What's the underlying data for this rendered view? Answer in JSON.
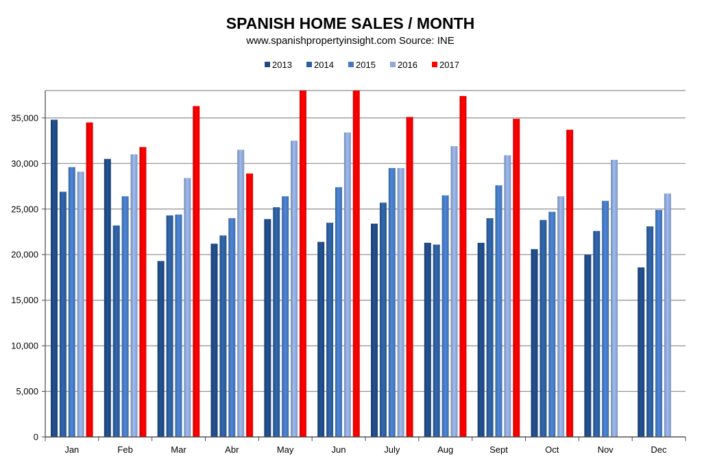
{
  "chart_data": {
    "type": "bar",
    "title": "SPANISH HOME SALES / MONTH",
    "subtitle": "www.spanishpropertyinsight.com Source: INE",
    "xlabel": "",
    "ylabel": "",
    "ylim": [
      0,
      38000
    ],
    "yticks": [
      0,
      5000,
      10000,
      15000,
      20000,
      25000,
      30000,
      35000
    ],
    "ytick_labels": [
      "0",
      "5,000",
      "10,000",
      "15,000",
      "20,000",
      "25,000",
      "30,000",
      "35,000"
    ],
    "grid": true,
    "legend_position": "top-center",
    "categories": [
      "Jan",
      "Feb",
      "Mar",
      "Abr",
      "May",
      "Jun",
      "July",
      "Aug",
      "Sept",
      "Oct",
      "Nov",
      "Dec"
    ],
    "series": [
      {
        "name": "2013",
        "color": "#1f4a85",
        "values": [
          34800,
          30500,
          19300,
          21200,
          23900,
          21400,
          23400,
          21300,
          21300,
          20600,
          20000,
          18600
        ]
      },
      {
        "name": "2014",
        "color": "#2d5e9e",
        "values": [
          26900,
          23200,
          24300,
          22100,
          25200,
          23500,
          25700,
          21100,
          24000,
          23800,
          22600,
          23100
        ]
      },
      {
        "name": "2015",
        "color": "#4679c2",
        "values": [
          29600,
          26400,
          24400,
          24000,
          26400,
          27400,
          29500,
          26500,
          27600,
          24700,
          25900,
          24900
        ]
      },
      {
        "name": "2016",
        "color": "#8ea8d8",
        "values": [
          29100,
          31000,
          28400,
          31500,
          32500,
          33400,
          29500,
          31900,
          30900,
          26400,
          30400,
          26700
        ]
      },
      {
        "name": "2017",
        "color": "#ff0000",
        "values": [
          34500,
          31800,
          36300,
          28900,
          38000,
          38000,
          35100,
          37400,
          34900,
          33700,
          null,
          null
        ]
      }
    ]
  }
}
